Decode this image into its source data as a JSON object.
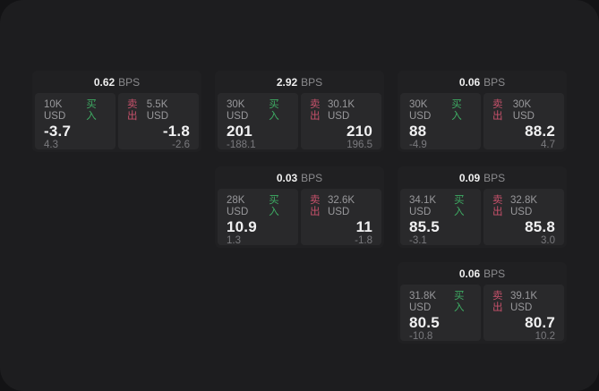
{
  "colors": {
    "page_bg": "#131315",
    "window_bg": "#1d1d1f",
    "card_bg": "#202022",
    "panel_bg": "#29292b",
    "text_primary": "#f1f1f2",
    "text_secondary": "#98989b",
    "text_muted": "#7a7a7e",
    "buy_green": "#3eab63",
    "sell_red": "#c7516b"
  },
  "labels": {
    "bps_unit": "BPS",
    "buy": "买入",
    "sell": "卖出"
  },
  "cards": [
    {
      "bps": "0.62",
      "buy": {
        "amount": "10K USD",
        "price": "-3.7",
        "delta": "4.3"
      },
      "sell": {
        "amount": "5.5K USD",
        "price": "-1.8",
        "delta": "-2.6"
      }
    },
    {
      "bps": "2.92",
      "buy": {
        "amount": "30K USD",
        "price": "201",
        "delta": "-188.1"
      },
      "sell": {
        "amount": "30.1K USD",
        "price": "210",
        "delta": "196.5"
      }
    },
    {
      "bps": "0.06",
      "buy": {
        "amount": "30K USD",
        "price": "88",
        "delta": "-4.9"
      },
      "sell": {
        "amount": "30K USD",
        "price": "88.2",
        "delta": "4.7"
      }
    },
    {
      "bps": "0.03",
      "buy": {
        "amount": "28K USD",
        "price": "10.9",
        "delta": "1.3"
      },
      "sell": {
        "amount": "32.6K USD",
        "price": "11",
        "delta": "-1.8"
      }
    },
    {
      "bps": "0.09",
      "buy": {
        "amount": "34.1K USD",
        "price": "85.5",
        "delta": "-3.1"
      },
      "sell": {
        "amount": "32.8K USD",
        "price": "85.8",
        "delta": "3.0"
      }
    },
    {
      "bps": "0.06",
      "buy": {
        "amount": "31.8K USD",
        "price": "80.5",
        "delta": "-10.8"
      },
      "sell": {
        "amount": "39.1K USD",
        "price": "80.7",
        "delta": "10.2"
      }
    }
  ]
}
